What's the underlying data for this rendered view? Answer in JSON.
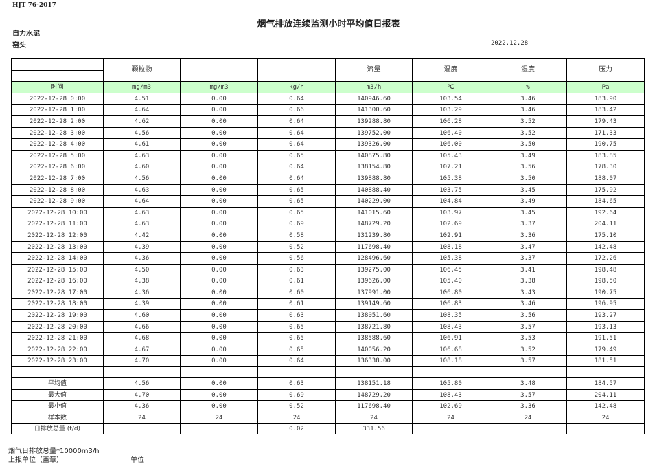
{
  "standard": "HJT  76-2017",
  "title": "烟气排放连续监测小时平均值日报表",
  "company": "自力水泥",
  "unit_name": "窑头",
  "report_date": "2022.12.28",
  "table": {
    "headers": [
      "",
      "颗粒物",
      "",
      "",
      "流量",
      "温度",
      "湿度",
      "压力"
    ],
    "units": [
      "时间",
      "mg/m3",
      "mg/m3",
      "kg/h",
      "m3/h",
      "℃",
      "%",
      "Pa"
    ],
    "rows": [
      [
        "2022-12-28 0:00",
        "4.51",
        "0.00",
        "0.64",
        "140946.60",
        "103.54",
        "3.46",
        "183.90"
      ],
      [
        "2022-12-28 1:00",
        "4.64",
        "0.00",
        "0.66",
        "141300.60",
        "103.29",
        "3.46",
        "183.42"
      ],
      [
        "2022-12-28 2:00",
        "4.62",
        "0.00",
        "0.64",
        "139288.80",
        "106.28",
        "3.52",
        "179.43"
      ],
      [
        "2022-12-28 3:00",
        "4.56",
        "0.00",
        "0.64",
        "139752.00",
        "106.40",
        "3.52",
        "171.33"
      ],
      [
        "2022-12-28 4:00",
        "4.61",
        "0.00",
        "0.64",
        "139326.00",
        "106.00",
        "3.50",
        "190.75"
      ],
      [
        "2022-12-28 5:00",
        "4.63",
        "0.00",
        "0.65",
        "140875.80",
        "105.43",
        "3.49",
        "183.85"
      ],
      [
        "2022-12-28 6:00",
        "4.60",
        "0.00",
        "0.64",
        "138154.80",
        "107.21",
        "3.56",
        "178.30"
      ],
      [
        "2022-12-28 7:00",
        "4.56",
        "0.00",
        "0.64",
        "139888.80",
        "105.38",
        "3.50",
        "188.07"
      ],
      [
        "2022-12-28 8:00",
        "4.63",
        "0.00",
        "0.65",
        "140888.40",
        "103.75",
        "3.45",
        "175.92"
      ],
      [
        "2022-12-28 9:00",
        "4.64",
        "0.00",
        "0.65",
        "140229.00",
        "104.84",
        "3.49",
        "184.65"
      ],
      [
        "2022-12-28 10:00",
        "4.63",
        "0.00",
        "0.65",
        "141015.60",
        "103.97",
        "3.45",
        "192.64"
      ],
      [
        "2022-12-28 11:00",
        "4.63",
        "0.00",
        "0.69",
        "148729.20",
        "102.69",
        "3.37",
        "204.11"
      ],
      [
        "2022-12-28 12:00",
        "4.42",
        "0.00",
        "0.58",
        "131239.80",
        "102.91",
        "3.36",
        "175.10"
      ],
      [
        "2022-12-28 13:00",
        "4.39",
        "0.00",
        "0.52",
        "117698.40",
        "108.18",
        "3.47",
        "142.48"
      ],
      [
        "2022-12-28 14:00",
        "4.36",
        "0.00",
        "0.56",
        "128496.60",
        "105.38",
        "3.37",
        "172.26"
      ],
      [
        "2022-12-28 15:00",
        "4.50",
        "0.00",
        "0.63",
        "139275.00",
        "106.45",
        "3.41",
        "198.48"
      ],
      [
        "2022-12-28 16:00",
        "4.38",
        "0.00",
        "0.61",
        "139626.00",
        "105.40",
        "3.38",
        "198.50"
      ],
      [
        "2022-12-28 17:00",
        "4.36",
        "0.00",
        "0.60",
        "137991.00",
        "106.80",
        "3.43",
        "190.75"
      ],
      [
        "2022-12-28 18:00",
        "4.39",
        "0.00",
        "0.61",
        "139149.60",
        "106.83",
        "3.46",
        "196.95"
      ],
      [
        "2022-12-28 19:00",
        "4.60",
        "0.00",
        "0.63",
        "138051.60",
        "108.35",
        "3.56",
        "193.27"
      ],
      [
        "2022-12-28 20:00",
        "4.66",
        "0.00",
        "0.65",
        "138721.80",
        "108.43",
        "3.57",
        "193.13"
      ],
      [
        "2022-12-28 21:00",
        "4.68",
        "0.00",
        "0.65",
        "138588.60",
        "106.91",
        "3.53",
        "191.51"
      ],
      [
        "2022-12-28 22:00",
        "4.67",
        "0.00",
        "0.65",
        "140056.20",
        "106.68",
        "3.52",
        "179.49"
      ],
      [
        "2022-12-28 23:00",
        "4.70",
        "0.00",
        "0.64",
        "136338.00",
        "108.18",
        "3.57",
        "181.51"
      ]
    ],
    "stats": [
      [
        "平均值",
        "4.56",
        "0.00",
        "0.63",
        "138151.18",
        "105.80",
        "3.48",
        "184.57"
      ],
      [
        "最大值",
        "4.70",
        "0.00",
        "0.69",
        "148729.20",
        "108.43",
        "3.57",
        "204.11"
      ],
      [
        "最小值",
        "4.36",
        "0.00",
        "0.52",
        "117698.40",
        "102.69",
        "3.36",
        "142.48"
      ],
      [
        "样本数",
        "24",
        "24",
        "24",
        "24",
        "24",
        "24",
        "24"
      ]
    ],
    "total": [
      "日排放总量 (t/d)",
      "",
      "",
      "0.02",
      "331.56",
      "",
      "",
      ""
    ]
  },
  "footer": {
    "note": "烟气日排放总量*10000m3/h",
    "reporter": "上报单位（盖章）",
    "unit_label": "单位"
  }
}
